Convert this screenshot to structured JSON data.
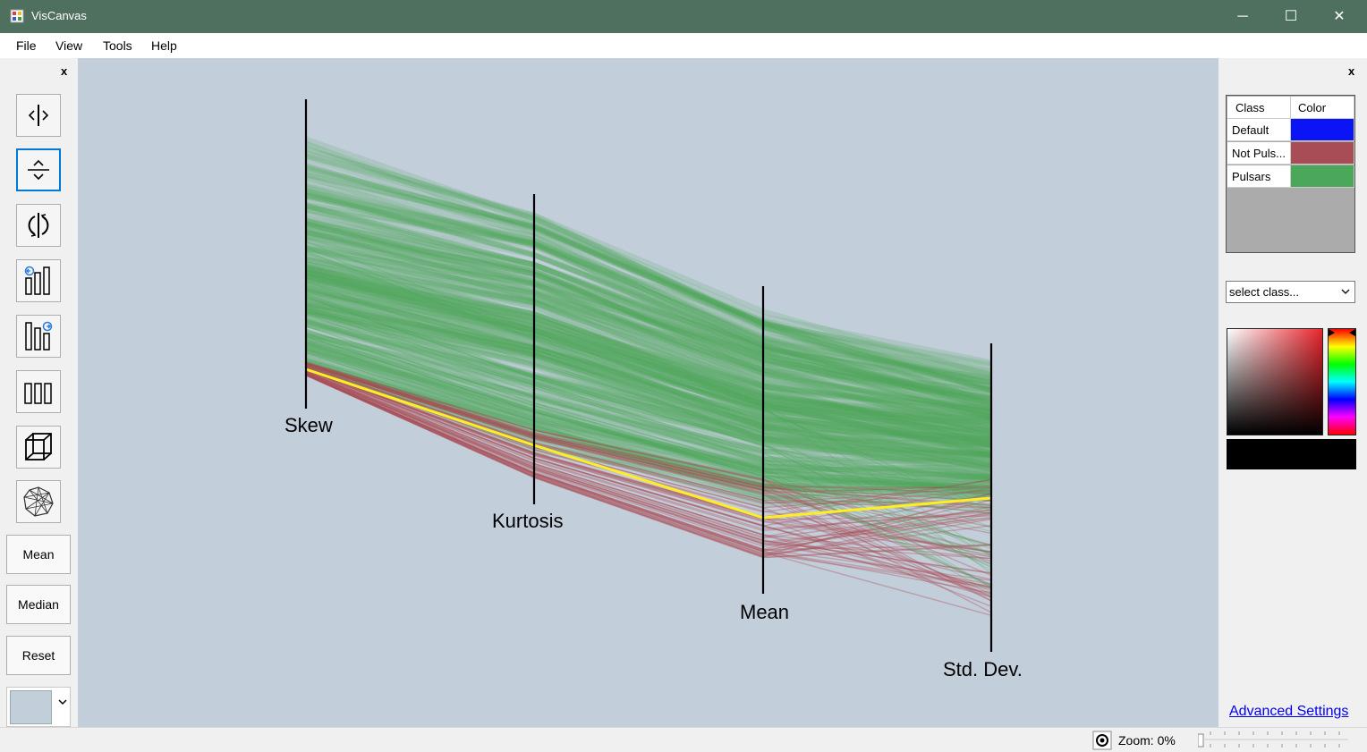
{
  "window": {
    "title": "VisCanvas",
    "minimize_glyph": "─",
    "maximize_glyph": "☐",
    "close_glyph": "✕"
  },
  "menu": [
    "File",
    "View",
    "Tools",
    "Help"
  ],
  "left_panel": {
    "close_label": "x",
    "tools": [
      {
        "icon": "horizontal-move-icon"
      },
      {
        "icon": "vertical-move-icon"
      },
      {
        "icon": "invert-axis-icon"
      },
      {
        "icon": "add-left-axis-icon"
      },
      {
        "icon": "add-right-axis-icon"
      },
      {
        "icon": "three-bars-icon"
      },
      {
        "icon": "cube-icon"
      },
      {
        "icon": "radial-network-icon"
      }
    ],
    "buttons": {
      "mean": "Mean",
      "median": "Median",
      "reset": "Reset"
    },
    "background_color": "#c3cedb"
  },
  "plot": {
    "type": "parallel-coordinates",
    "axes": [
      "Skew",
      "Kurtosis",
      "Mean",
      "Std. Dev."
    ],
    "highlight_color": "#ffee22"
  },
  "right_panel": {
    "close_label": "x",
    "class_table": {
      "headers": [
        "Class",
        "Color"
      ],
      "rows": [
        {
          "name": "Default",
          "color": "#0a14f5"
        },
        {
          "name": "Not Puls...",
          "color": "#a84c55"
        },
        {
          "name": "Pulsars",
          "color": "#4ba85a"
        }
      ]
    },
    "select_placeholder": "select class...",
    "advanced_settings": "Advanced Settings"
  },
  "status": {
    "zoom": "Zoom: 0%"
  }
}
